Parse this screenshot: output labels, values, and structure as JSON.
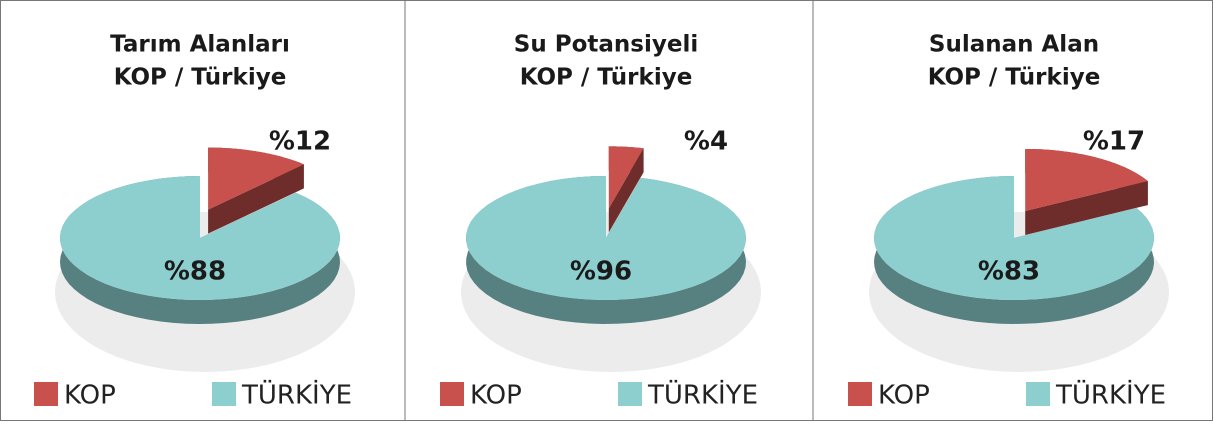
{
  "chart_data": [
    {
      "type": "pie",
      "title": "Tarım Alanları",
      "subtitle": "KOP / Türkiye",
      "categories": [
        "KOP",
        "TÜRKİYE"
      ],
      "values": [
        12,
        88
      ],
      "value_labels": [
        "%12",
        "%88"
      ],
      "colors": [
        "#c8514d",
        "#8dcfcf"
      ]
    },
    {
      "type": "pie",
      "title": "Su Potansiyeli",
      "subtitle": "KOP / Türkiye",
      "categories": [
        "KOP",
        "TÜRKİYE"
      ],
      "values": [
        4,
        96
      ],
      "value_labels": [
        "%4",
        "%96"
      ],
      "colors": [
        "#c8514d",
        "#8dcfcf"
      ]
    },
    {
      "type": "pie",
      "title": "Sulanan Alan",
      "subtitle": "KOP / Türkiye",
      "categories": [
        "KOP",
        "TÜRKİYE"
      ],
      "values": [
        17,
        83
      ],
      "value_labels": [
        "%17",
        "%83"
      ],
      "colors": [
        "#c8514d",
        "#8dcfcf"
      ]
    }
  ]
}
